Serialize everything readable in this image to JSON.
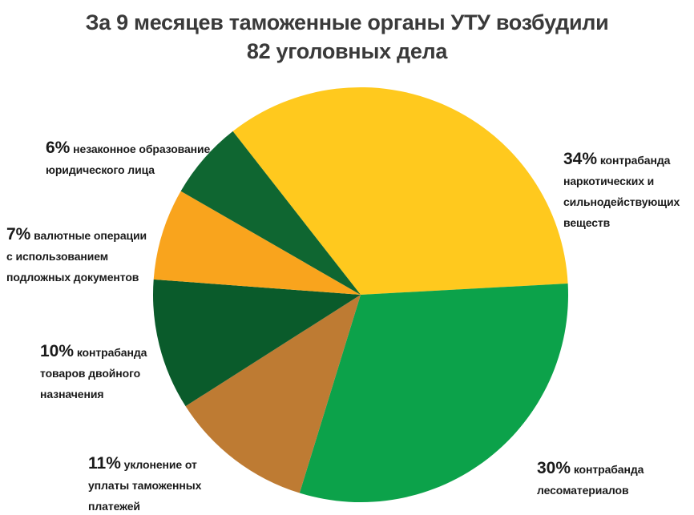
{
  "title": {
    "line1": "За 9 месяцев таможенные органы УТУ возбудили",
    "line2": "82 уголовных дела"
  },
  "chart_data": {
    "type": "pie",
    "title": "За 9 месяцев таможенные органы УТУ возбудили 82 уголовных дела",
    "total_cases": 82,
    "start_angle_deg": 322,
    "clockwise": true,
    "legend_position": "labels-around-pie",
    "slices": [
      {
        "label": "контрабанда наркотических и сильнодействующих веществ",
        "pct": 34,
        "color": "#FFC91E"
      },
      {
        "label": "контрабанда лесоматериалов",
        "pct": 30,
        "color": "#0CA24A"
      },
      {
        "label": "уклонение от уплаты таможенных платежей",
        "pct": 11,
        "color": "#BE7B33"
      },
      {
        "label": "контрабанда товаров двойного назначения",
        "pct": 10,
        "color": "#0A5B2B"
      },
      {
        "label": "валютные операции с использованием подложных документов",
        "pct": 7,
        "color": "#F9A41D"
      },
      {
        "label": "незаконное образование юридического лица",
        "pct": 6,
        "color": "#0F6631"
      }
    ]
  },
  "callouts": {
    "narcotics": {
      "pct": "34%",
      "text": "контрабанда\nнаркотических и\nсильнодействующих\nвеществ"
    },
    "timber": {
      "pct": "30%",
      "text": "контрабанда\nлесоматериалов"
    },
    "payments": {
      "pct": "11%",
      "text": "уклонение от\nуплаты таможенных\nплатежей"
    },
    "dual_use": {
      "pct": "10%",
      "text": "контрабанда\nтоваров двойного\nназначения"
    },
    "currency": {
      "pct": "7%",
      "text": "валютные операции\nс использованием\nподложных документов"
    },
    "legal_entity": {
      "pct": "6%",
      "text": "незаконное образование\nюридического лица"
    }
  }
}
